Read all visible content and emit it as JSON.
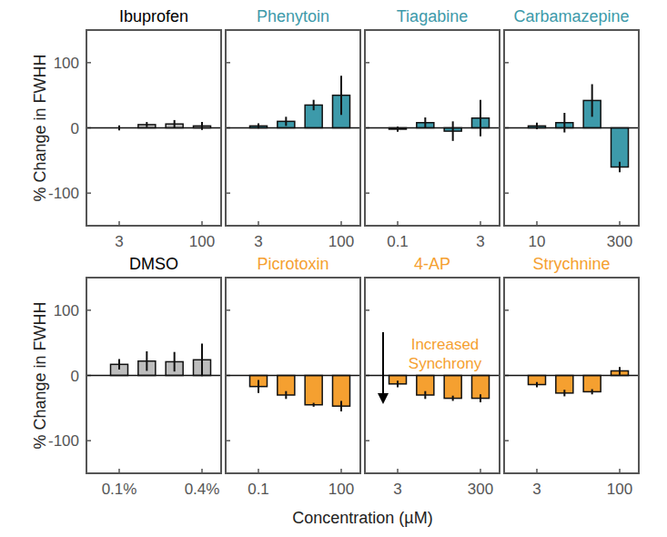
{
  "chart_data": [
    {
      "type": "bar",
      "title": "Ibuprofen",
      "y_label": "% Change in FWHH",
      "categories": [
        "3",
        null,
        null,
        "100"
      ],
      "values": [
        0,
        5,
        6,
        3
      ],
      "errors": [
        4,
        4,
        6,
        6
      ],
      "color": "#bdbdbd",
      "ylim": [
        -150,
        150
      ],
      "yticks": [
        -100,
        0,
        100
      ]
    },
    {
      "type": "bar",
      "title": "Phenytoin",
      "categories": [
        "3",
        null,
        null,
        "100"
      ],
      "values": [
        3,
        10,
        35,
        50
      ],
      "errors": [
        4,
        7,
        8,
        30
      ],
      "color": "#3d9aaa",
      "ylim": [
        -150,
        150
      ],
      "yticks": [
        -100,
        0,
        100
      ],
      "tick_labels": "x"
    },
    {
      "type": "bar",
      "title": "Tiagabine",
      "categories": [
        "0.1",
        null,
        null,
        "3"
      ],
      "values": [
        -2,
        8,
        -5,
        15
      ],
      "errors": [
        4,
        8,
        15,
        28
      ],
      "color": "#3d9aaa",
      "ylim": [
        -150,
        150
      ],
      "yticks": [
        -100,
        0,
        100
      ],
      "tick_labels": "x"
    },
    {
      "type": "bar",
      "title": "Carbamazepine",
      "categories": [
        "10",
        null,
        null,
        "300"
      ],
      "values": [
        3,
        8,
        42,
        -60
      ],
      "errors": [
        5,
        15,
        25,
        8
      ],
      "color": "#3d9aaa",
      "ylim": [
        -150,
        150
      ],
      "yticks": [
        -100,
        0,
        100
      ],
      "tick_labels": "x"
    },
    {
      "type": "bar",
      "title": "DMSO",
      "y_label": "% Change in FWHH",
      "x_label": "Concentration (µM)",
      "categories": [
        "0.1%",
        null,
        null,
        "0.4%"
      ],
      "values": [
        17,
        22,
        21,
        24
      ],
      "errors": [
        8,
        15,
        15,
        25
      ],
      "color": "#bdbdbd",
      "ylim": [
        -150,
        150
      ],
      "yticks": [
        -100,
        0,
        100
      ]
    },
    {
      "type": "bar",
      "title": "Picrotoxin",
      "categories": [
        "0.1",
        null,
        null,
        "100"
      ],
      "values": [
        -17,
        -30,
        -45,
        -47
      ],
      "errors": [
        10,
        6,
        3,
        8
      ],
      "color": "#f5a030",
      "ylim": [
        -150,
        150
      ],
      "yticks": [
        -100,
        0,
        100
      ],
      "tick_labels": "x"
    },
    {
      "type": "bar",
      "title": "4-AP",
      "annotation": "Increased Synchrony",
      "categories": [
        "3",
        null,
        null,
        "300"
      ],
      "values": [
        -13,
        -30,
        -35,
        -35
      ],
      "errors": [
        5,
        6,
        4,
        6
      ],
      "color": "#f5a030",
      "ylim": [
        -150,
        150
      ],
      "yticks": [
        -100,
        0,
        100
      ],
      "tick_labels": "x"
    },
    {
      "type": "bar",
      "title": "Strychnine",
      "categories": [
        "3",
        null,
        null,
        "100"
      ],
      "values": [
        -14,
        -27,
        -25,
        7
      ],
      "errors": [
        4,
        5,
        4,
        6
      ],
      "color": "#f5a030",
      "ylim": [
        -150,
        150
      ],
      "yticks": [
        -100,
        0,
        100
      ],
      "tick_labels": "x"
    }
  ]
}
